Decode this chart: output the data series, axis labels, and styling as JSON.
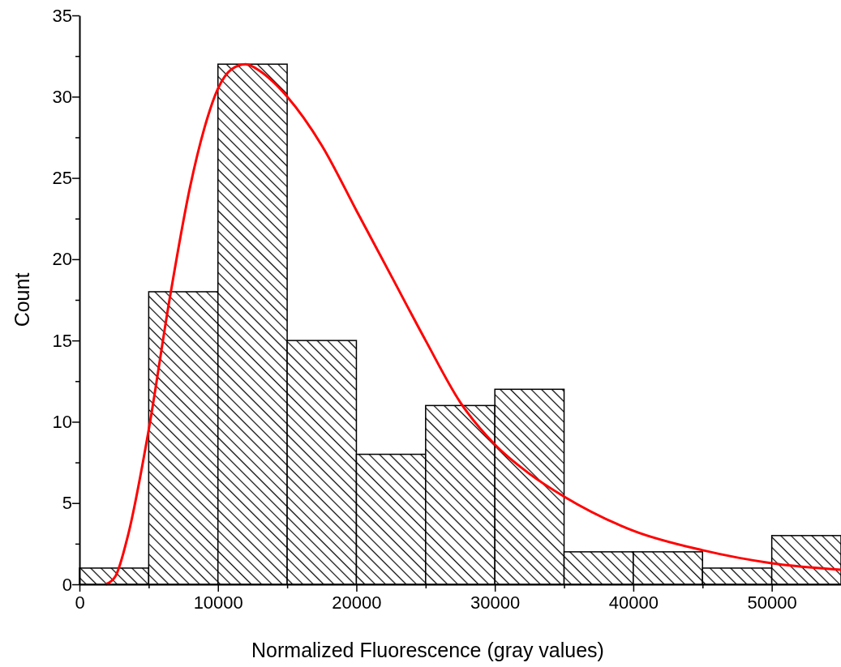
{
  "chart_data": {
    "type": "histogram",
    "xlabel": "Normalized Fluorescence (gray values)",
    "ylabel": "Count",
    "bins": [
      0,
      5000,
      10000,
      15000,
      20000,
      25000,
      30000,
      35000,
      40000,
      45000,
      50000,
      55000
    ],
    "series": [
      {
        "color": "#000000",
        "values": [
          1,
          18,
          32,
          15,
          8,
          11,
          12,
          2,
          2,
          1,
          3
        ]
      },
      {
        "type": "line",
        "color": "#ff0000",
        "x": [
          1900,
          2600,
          3500,
          5000,
          6500,
          8000,
          9000,
          10000,
          11000,
          12000,
          13000,
          14000,
          15000,
          17500,
          20000,
          22500,
          25000,
          27500,
          30000,
          32500,
          35000,
          40000,
          45000,
          50000,
          55000
        ],
        "values": [
          0,
          0.5,
          3,
          9.5,
          17.5,
          24.5,
          28,
          30.5,
          31.7,
          32,
          31.6,
          30.9,
          30,
          27,
          23,
          19,
          15,
          11.2,
          8.6,
          6.8,
          5.4,
          3.3,
          2.1,
          1.3,
          0.9
        ]
      }
    ],
    "xlim": [
      0,
      55000
    ],
    "ylim": [
      0,
      35
    ],
    "xticks": [
      0,
      {
        "value": 5000,
        "label": null
      },
      10000,
      {
        "value": 15000,
        "label": null
      },
      20000,
      {
        "value": 25000,
        "label": null
      },
      30000,
      {
        "value": 35000,
        "label": null
      },
      40000,
      {
        "value": 45000,
        "label": null
      },
      50000
    ],
    "yticks": [
      0,
      {
        "value": 2.5,
        "label": null
      },
      5,
      {
        "value": 7.5,
        "label": null
      },
      10,
      {
        "value": 12.5,
        "label": null
      },
      15,
      {
        "value": 17.5,
        "label": null
      },
      20,
      {
        "value": 22.5,
        "label": null
      },
      25,
      {
        "value": 27.5,
        "label": null
      },
      30,
      {
        "value": 32.5,
        "label": null
      },
      35
    ],
    "grid": false,
    "marker": "none",
    "line_style": "solid"
  }
}
